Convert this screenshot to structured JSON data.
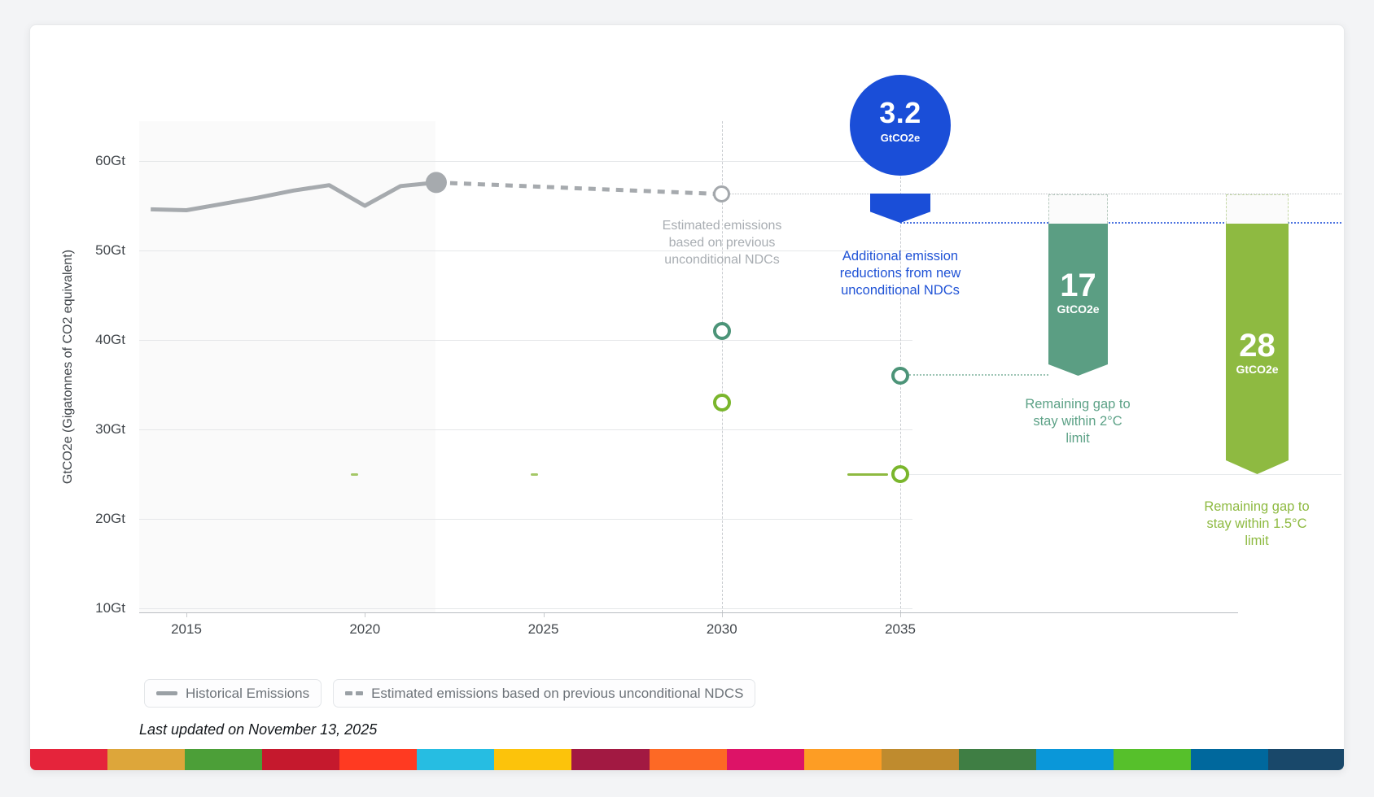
{
  "chart_data": {
    "type": "line",
    "title": "",
    "ylabel": "GtCO2e (Gigatonnes of CO2 equivalent)",
    "xlabel": "",
    "ylim": [
      5,
      64
    ],
    "xlim": [
      2013.6,
      2036
    ],
    "grid": "horizontal",
    "legend_position": "bottom",
    "y_ticks": [
      {
        "value": 60,
        "label": "60Gt"
      },
      {
        "value": 50,
        "label": "50Gt"
      },
      {
        "value": 40,
        "label": "40Gt"
      },
      {
        "value": 30,
        "label": "30Gt"
      },
      {
        "value": 20,
        "label": "20Gt"
      },
      {
        "value": 10,
        "label": "10Gt"
      }
    ],
    "x_ticks": [
      {
        "value": 2015,
        "label": "2015"
      },
      {
        "value": 2020,
        "label": "2020"
      },
      {
        "value": 2025,
        "label": "2025"
      },
      {
        "value": 2030,
        "label": "2030"
      },
      {
        "value": 2035,
        "label": "2035"
      }
    ],
    "series": [
      {
        "name": "Historical Emissions",
        "style": "solid",
        "color": "#a6aaae",
        "x": [
          2014,
          2015,
          2016,
          2017,
          2018,
          2019,
          2020,
          2021,
          2022
        ],
        "values": [
          54.6,
          54.5,
          55.2,
          55.9,
          56.7,
          57.3,
          55.0,
          57.2,
          57.6
        ]
      },
      {
        "name": "Estimated emissions based on previous unconditional NDCS",
        "style": "dashed",
        "color": "#a6aaae",
        "x": [
          2022,
          2030
        ],
        "values": [
          57.6,
          56.3
        ]
      }
    ],
    "markers": [
      {
        "name": "2C-pathway-2030",
        "x": 2030,
        "value": 41,
        "color": "#4c9478"
      },
      {
        "name": "1.5C-pathway-2030",
        "x": 2030,
        "value": 33,
        "color": "#7ab62c"
      },
      {
        "name": "2C-pathway-2035",
        "x": 2035,
        "value": 36,
        "color": "#4c9478"
      },
      {
        "name": "1.5C-pathway-2035",
        "x": 2035,
        "value": 25,
        "color": "#7ab62c"
      }
    ],
    "annotations": {
      "estimated_2030_level": 56.3,
      "new_ndc_2035_level": 53.1,
      "additional_reduction_gtco2e": 3.2,
      "gap_2c_gtco2e": 17,
      "gap_15c_gtco2e": 28
    }
  },
  "note_prev_ndc": {
    "line1": "Estimated emissions",
    "line2": "based on previous",
    "line3": "unconditional NDCs"
  },
  "badge": {
    "value": "3.2",
    "unit": "GtCO2e",
    "label1": "Additional emission",
    "label2": "reductions from new",
    "label3": "unconditional NDCs",
    "color": "#1a4ed8"
  },
  "gap_2c": {
    "value": "17",
    "unit": "GtCO2e",
    "caption1": "Remaining gap to",
    "caption2": "stay within 2°C",
    "caption3": "limit",
    "color": "#5b9e83"
  },
  "gap_15c": {
    "value": "28",
    "unit": "GtCO2e",
    "caption1": "Remaining gap to",
    "caption2": "stay within 1.5°C",
    "caption3": "limit",
    "color": "#8eba41"
  },
  "legend": [
    {
      "swatch": "solid-line",
      "label": "Historical Emissions"
    },
    {
      "swatch": "dashed-line",
      "label": "Estimated emissions based on previous unconditional NDCS"
    }
  ],
  "footer": {
    "last_updated": "Last updated on November 13, 2025"
  },
  "sdg_stripe_colors": [
    "#e5243b",
    "#dda63a",
    "#4c9f38",
    "#c5192d",
    "#ff3a21",
    "#26bde2",
    "#fcc30b",
    "#a21942",
    "#fd6925",
    "#dd1367",
    "#fd9d24",
    "#bf8b2e",
    "#3f7e44",
    "#0a97d9",
    "#56c02b",
    "#00689d",
    "#19486a"
  ]
}
